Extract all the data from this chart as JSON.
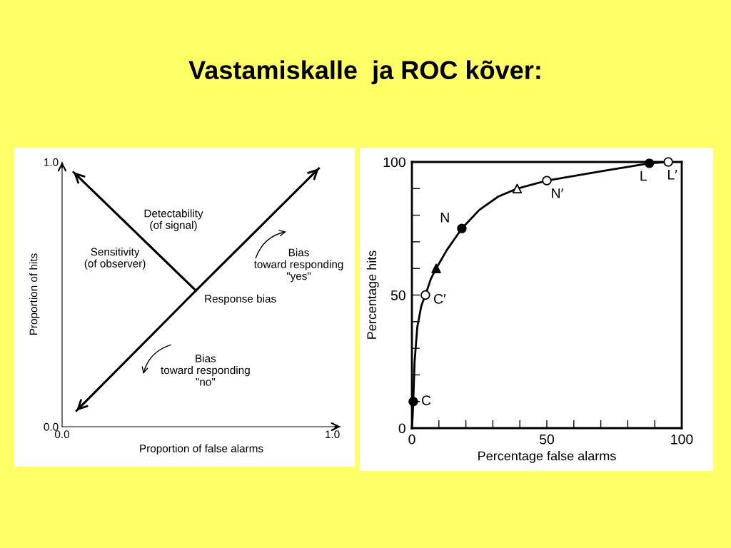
{
  "chart_data": [
    {
      "type": "line",
      "title": "Vastamiskalle  ja ROC kõver:",
      "xlabel": "Proportion of false alarms",
      "ylabel": "Proportion of hits",
      "xlim": [
        0,
        1.03
      ],
      "ylim": [
        0,
        1.0
      ],
      "xticks": [
        {
          "value": 0,
          "label": "0.0"
        },
        {
          "value": 1.0,
          "label": "1.0"
        }
      ],
      "yticks": [
        {
          "value": 0,
          "label": "0.0"
        },
        {
          "value": 1.0,
          "label": "1.0"
        }
      ],
      "series": [
        {
          "color": "#000000",
          "x": [
            0.053,
            0.495,
            0.95
          ],
          "values": [
            0.06,
            0.514,
            0.976
          ]
        },
        {
          "color": "#000000",
          "x": [
            0.495,
            0.042
          ],
          "values": [
            0.514,
            0.962
          ]
        }
      ],
      "annotations": [
        "Detectability\n(of signal)",
        "Sensitivity\n(of observer)",
        "Response bias",
        "Bias\ntoward responding\n\"yes\"",
        "Bias\ntoward responding\n\"no\""
      ]
    },
    {
      "type": "line",
      "xlabel": "Percentage false alarms",
      "ylabel": "Percentage hits",
      "xlim": [
        0,
        100
      ],
      "ylim": [
        0,
        100
      ],
      "xticks": [
        0,
        {
          "value": 10,
          "label": null
        },
        {
          "value": 20,
          "label": null
        },
        {
          "value": 30,
          "label": null
        },
        {
          "value": 40,
          "label": null
        },
        50,
        {
          "value": 60,
          "label": null
        },
        {
          "value": 70,
          "label": null
        },
        {
          "value": 80,
          "label": null
        },
        {
          "value": 90,
          "label": null
        },
        100
      ],
      "yticks": [
        0,
        {
          "value": 10,
          "label": null
        },
        {
          "value": 20,
          "label": null
        },
        {
          "value": 30,
          "label": null
        },
        {
          "value": 40,
          "label": null
        },
        50,
        {
          "value": 60,
          "label": null
        },
        {
          "value": 70,
          "label": null
        },
        {
          "value": 80,
          "label": null
        },
        {
          "value": 90,
          "label": null
        },
        100
      ],
      "series": [
        {
          "type": "line",
          "color": "#000000",
          "marker": "none",
          "x": [
            0,
            0.3,
            0.5,
            1,
            2,
            3.5,
            5,
            7,
            9,
            13,
            18.5,
            25,
            32,
            39,
            50,
            70,
            88,
            95
          ],
          "values": [
            0,
            5,
            10,
            25,
            38,
            46,
            50,
            56,
            60,
            67,
            75,
            82,
            87,
            90,
            93,
            96.5,
            99.5,
            100
          ]
        },
        {
          "type": "scatter",
          "color": "#000000",
          "marker": "circle",
          "x": [
            0.5,
            18.5,
            88
          ],
          "values": [
            10,
            75,
            99.5
          ]
        },
        {
          "type": "scatter",
          "color": "#ffffff",
          "marker": "circle",
          "x": [
            5,
            50,
            95
          ],
          "values": [
            50,
            93,
            100
          ]
        },
        {
          "type": "scatter",
          "color": "#000000",
          "marker": "triangle",
          "x": [
            9
          ],
          "values": [
            60
          ]
        },
        {
          "type": "scatter",
          "color": "#ffffff",
          "marker": "triangle",
          "x": [
            39
          ],
          "values": [
            90
          ]
        }
      ],
      "annotations": [
        {
          "text": "C",
          "x": 0.5,
          "y": 10
        },
        {
          "text": "C′",
          "x": 5,
          "y": 50
        },
        {
          "text": "N",
          "x": 18.5,
          "y": 75
        },
        {
          "text": "N′",
          "x": 50,
          "y": 93
        },
        {
          "text": "L",
          "x": 88,
          "y": 99.5
        },
        {
          "text": "L′",
          "x": 95,
          "y": 100
        }
      ]
    }
  ]
}
